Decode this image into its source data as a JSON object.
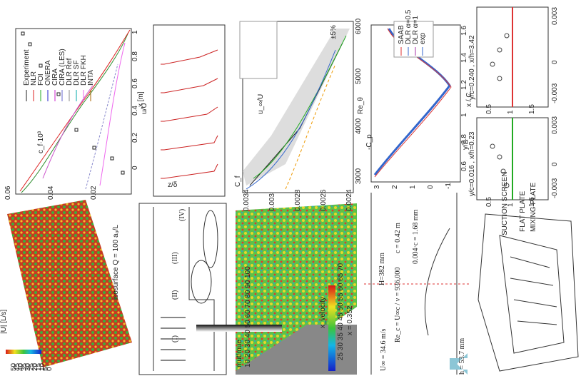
{
  "isosurface": {
    "caption": "isosurface Q = 100 a₀/L",
    "colorbar_label": "|U| [L/s]",
    "colorbar_ticks": [
      "50",
      "45",
      "40",
      "35",
      "30",
      "25",
      "20",
      "15",
      "10",
      "5",
      "0"
    ]
  },
  "skin_friction_plot": {
    "y_label": "c_f·10³",
    "y_ticks": [
      "0.06",
      "0.04",
      "0.02"
    ],
    "x_label": "x [m]",
    "x_ticks": [
      "0",
      "0.2",
      "0.4",
      "0.6",
      "0.8",
      "1"
    ],
    "legend": [
      "Experiment",
      "NLR",
      "FOI",
      "ONERA",
      "CIRA",
      "CIRA (LES)",
      "DLR Ref",
      "DLR SF",
      "DLR FKH",
      "INTA"
    ]
  },
  "profiles_plot": {
    "x_label": "u/U",
    "y_label": "z/δ"
  },
  "sketch": {
    "regions": [
      "(I)",
      "(II)",
      "(III)",
      "(IV)"
    ]
  },
  "cf_plot": {
    "annotation": "±5%",
    "y_label": "C_f",
    "y_ticks": [
      "0.0034",
      "0.003",
      "0.0028",
      "0.0026",
      "0.0024"
    ],
    "x_label": "Re_θ",
    "x_ticks": [
      "3000",
      "4000",
      "5000",
      "6000"
    ],
    "top_label": "u_∞/U"
  },
  "velocity_field": {
    "colorbar_label": "x_velocity",
    "colorbar_ticks": "25 30 35 40 45 50 55 60 65 70",
    "station": "x = 0.352",
    "legend_title": "mut/mue",
    "legend_ticks": "10 20 30 40 50 60 70 80 90 100"
  },
  "cp_plot": {
    "y_label": "-C_p",
    "y_ticks": [
      "3",
      "2",
      "1",
      "0",
      "-1"
    ],
    "x_label": "x / C",
    "x_ticks": [
      "0.6",
      "0.8",
      "1",
      "1.2",
      "1.4",
      "1.6"
    ],
    "legend": [
      "SAAB",
      "DLR α=0.5",
      "DLR α=1",
      "exp"
    ]
  },
  "airfoil": {
    "reynolds": "Re_c = U∞c / ν = 936,000",
    "chord": "c = 0.42 m",
    "height": "H=382 mm",
    "velocity": "U∞ = 34.6 m/s",
    "step": "h = 53.7 mm",
    "gap": "0.004·c = 1.68 mm"
  },
  "profile_pair": {
    "left_title": "y/c=0.016 , x/h=0.23",
    "right_title": "y/c=0.240 , x/h=3.42",
    "y_label": "y/Δ",
    "y_ticks": [
      "0.5",
      "1",
      "1.5"
    ],
    "x_ticks": [
      "-0.003",
      "0",
      "0.003"
    ]
  },
  "tunnel": {
    "labels": [
      "SUCTION SCREEN",
      "FLAT PLATE",
      "MIXING PLATE"
    ]
  }
}
